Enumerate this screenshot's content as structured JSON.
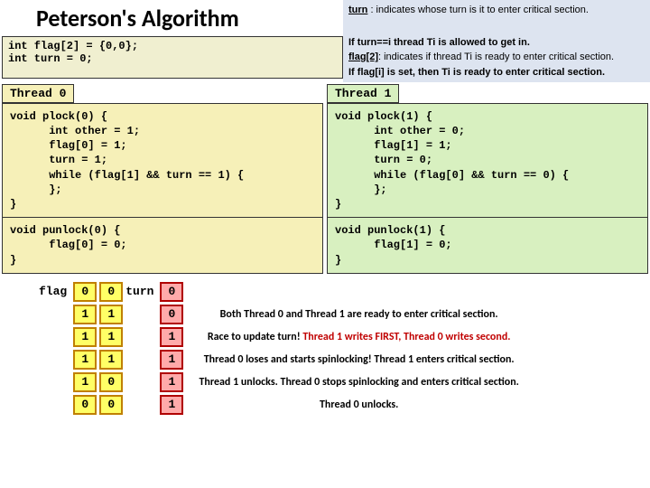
{
  "title": "Peterson's Algorithm",
  "legend": {
    "turn_label": "turn",
    "turn_text": " : indicates whose turn is it to enter critical section.",
    "turn_rule": "If turn==i thread Ti is allowed to get in.",
    "flag_label": "flag[2]",
    "flag_text": ": indicates if thread Ti is ready to enter critical section.",
    "flag_rule": "If flag[i] is set, then Ti is ready to enter critical section."
  },
  "decl_line1": "int flag[2] = {0,0};",
  "decl_line2": "int turn = 0;",
  "thread0": {
    "label": "Thread 0",
    "plock": "void plock(0) {\n      int other = 1;\n      flag[0] = 1;\n      turn = 1;\n      while (flag[1] && turn == 1) {\n      };\n}",
    "punlock": "void punlock(0) {\n      flag[0] = 0;\n}"
  },
  "thread1": {
    "label": "Thread 1",
    "plock": "void plock(1) {\n      int other = 0;\n      flag[1] = 1;\n      turn = 0;\n      while (flag[0] && turn == 0) {\n      };\n}",
    "punlock": "void punlock(1) {\n      flag[1] = 0;\n}"
  },
  "table": {
    "flag_label": "flag",
    "turn_label": "turn",
    "header": {
      "f0": "0",
      "f1": "0",
      "t": "0"
    },
    "rows": [
      {
        "f0": "1",
        "f1": "1",
        "t": "0",
        "desc_plain": "Both Thread 0 and Thread 1 are ready to enter critical section.",
        "desc_red": ""
      },
      {
        "f0": "1",
        "f1": "1",
        "t": "1",
        "desc_plain": "Race to update turn! ",
        "desc_red": "Thread 1 writes FIRST, Thread 0 writes second."
      },
      {
        "f0": "1",
        "f1": "1",
        "t": "1",
        "desc_plain": "Thread 0 loses and starts spinlocking! Thread 1 enters critical section.",
        "desc_red": ""
      },
      {
        "f0": "1",
        "f1": "0",
        "t": "1",
        "desc_plain": "Thread 1 unlocks. Thread 0 stops spinlocking and enters critical section.",
        "desc_red": ""
      },
      {
        "f0": "0",
        "f1": "0",
        "t": "1",
        "desc_plain": "Thread 0 unlocks.",
        "desc_red": ""
      }
    ]
  }
}
